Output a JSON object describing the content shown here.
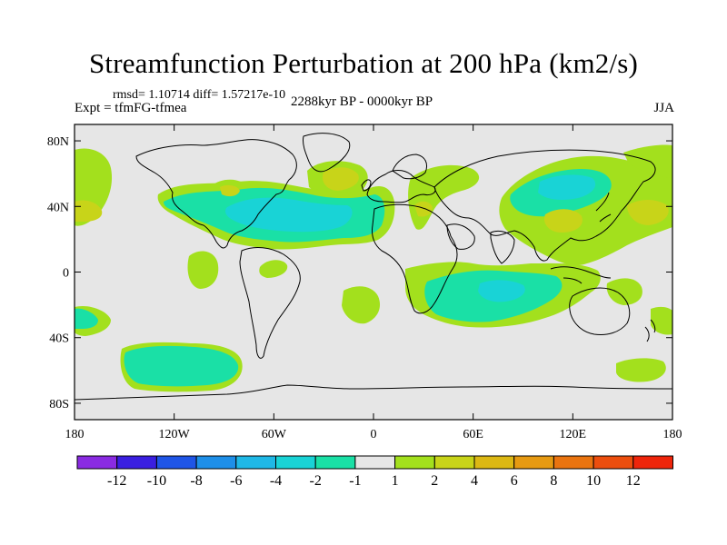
{
  "title": "Streamfunction Perturbation at 200 hPa (km2/s)",
  "stats": "rmsd= 1.10714 diff= 1.57217e-10",
  "experiment": "Expt = tfmFG-tfmea",
  "period": "2288kyr BP - 0000kyr BP",
  "season": "JJA",
  "map": {
    "lon_range": [
      -180,
      180
    ],
    "lat_range": [
      -90,
      90
    ],
    "lat_ticks": [
      {
        "value": 80,
        "label": "80N"
      },
      {
        "value": 40,
        "label": "40N"
      },
      {
        "value": 0,
        "label": "0"
      },
      {
        "value": -40,
        "label": "40S"
      },
      {
        "value": -80,
        "label": "80S"
      }
    ],
    "lon_ticks": [
      {
        "value": -180,
        "label": "180"
      },
      {
        "value": -120,
        "label": "120W"
      },
      {
        "value": -60,
        "label": "60W"
      },
      {
        "value": 0,
        "label": "0"
      },
      {
        "value": 60,
        "label": "60E"
      },
      {
        "value": 120,
        "label": "120E"
      },
      {
        "value": 180,
        "label": "180"
      }
    ],
    "background_color": "#e6e6e6"
  },
  "colorbar": {
    "colors": [
      "#8a2be2",
      "#3a1fe0",
      "#1f55e6",
      "#1e8fe8",
      "#1fb8e6",
      "#19d3d6",
      "#1ae0a6",
      "#e6e6e6",
      "#a3e01d",
      "#c8d419",
      "#dcb814",
      "#e69a12",
      "#ea7410",
      "#ec4e0e",
      "#ee250b"
    ],
    "labels": [
      "-12",
      "-10",
      "-8",
      "-6",
      "-4",
      "-2",
      "-1",
      "1",
      "2",
      "4",
      "6",
      "8",
      "10",
      "12"
    ]
  }
}
